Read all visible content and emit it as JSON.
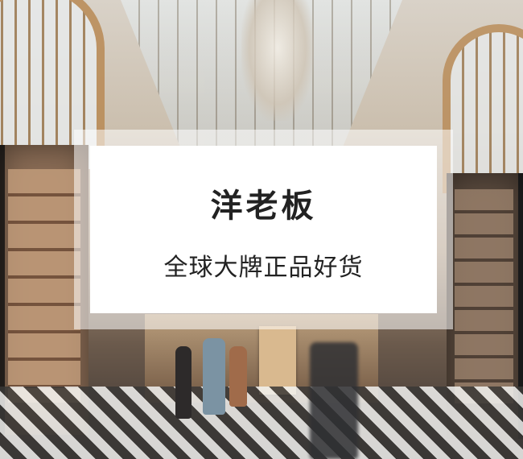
{
  "card": {
    "title": "洋老板",
    "subtitle": "全球大牌正品好货"
  },
  "colors": {
    "card_background": "#ffffff",
    "text": "#222222"
  }
}
